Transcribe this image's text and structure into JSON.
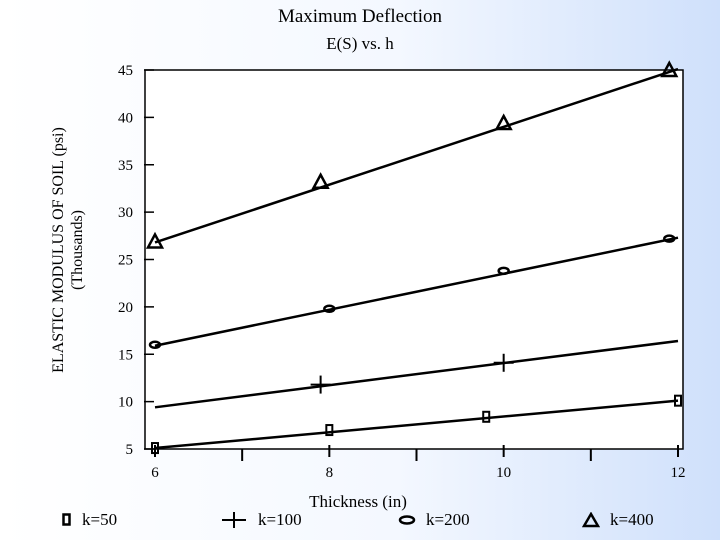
{
  "chart_data": {
    "type": "line",
    "title": "Maximum Deflection",
    "subtitle": "E(S) vs. h",
    "xlabel": "Thickness (in)",
    "ylabel_line1": "ELASTIC MODULUS OF SOIL (psi)",
    "ylabel_line2": "(Thousands)",
    "xlim": [
      6,
      12
    ],
    "ylim": [
      5,
      45
    ],
    "x_ticks": [
      6,
      8,
      10,
      12
    ],
    "x_minor_ticks": [
      7,
      9,
      11
    ],
    "y_ticks": [
      5,
      10,
      15,
      20,
      25,
      30,
      35,
      40,
      45
    ],
    "grid": false,
    "legend_position": "bottom",
    "series": [
      {
        "name": "k=50",
        "marker": "rect",
        "x": [
          6,
          8,
          9.8,
          12
        ],
        "y": [
          5.1,
          7.0,
          8.4,
          10.1
        ],
        "line": [
          6,
          5.1,
          12,
          10.1
        ]
      },
      {
        "name": "k=100",
        "marker": "plus",
        "x": [
          7.9,
          10
        ],
        "y": [
          11.8,
          14.1
        ],
        "line": [
          6,
          9.4,
          12,
          16.4
        ]
      },
      {
        "name": "k=200",
        "marker": "ellipse",
        "x": [
          6,
          8,
          10,
          11.9
        ],
        "y": [
          16.0,
          19.8,
          23.8,
          27.2
        ],
        "line": [
          6,
          15.9,
          12,
          27.3
        ]
      },
      {
        "name": "k=400",
        "marker": "triangle",
        "x": [
          6,
          7.9,
          10,
          11.9
        ],
        "y": [
          26.8,
          33.1,
          39.3,
          44.9
        ],
        "line": [
          6,
          26.8,
          12,
          45.1
        ]
      }
    ]
  }
}
